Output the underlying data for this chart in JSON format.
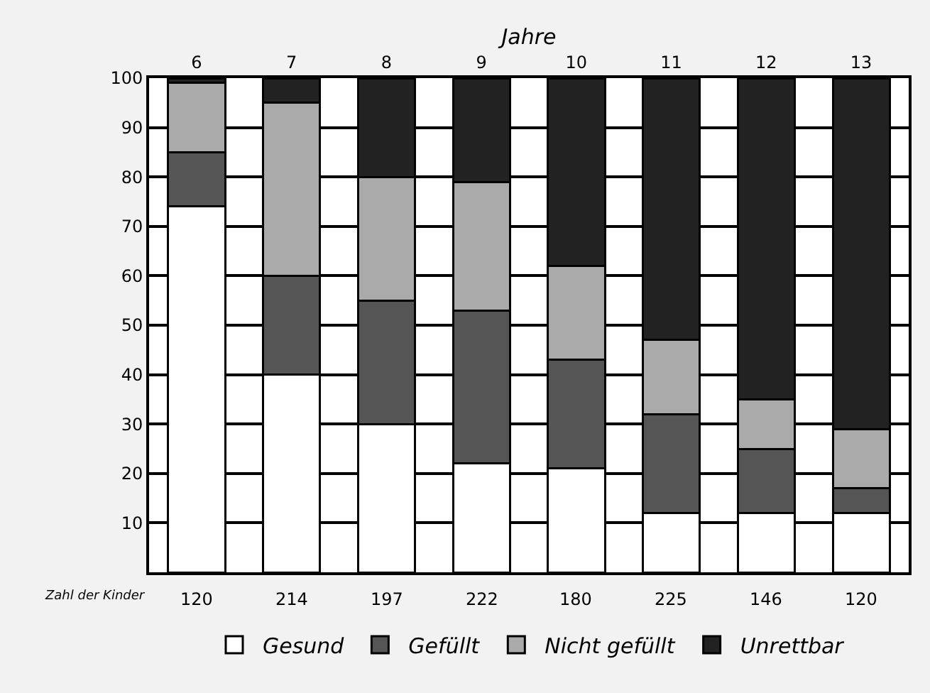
{
  "chart_data": {
    "type": "bar",
    "stacked": true,
    "xlabel": "Jahre",
    "categories": [
      "6",
      "7",
      "8",
      "9",
      "10",
      "11",
      "12",
      "13"
    ],
    "series": [
      {
        "name": "Gesund",
        "color": "#ffffff",
        "values": [
          74,
          40,
          30,
          22,
          21,
          12,
          12,
          12
        ]
      },
      {
        "name": "Gefüllt",
        "color": "#555555",
        "values": [
          11,
          20,
          25,
          31,
          22,
          20,
          13,
          5
        ]
      },
      {
        "name": "Nicht gefüllt",
        "color": "#aaaaaa",
        "values": [
          14,
          35,
          25,
          26,
          19,
          15,
          10,
          12
        ]
      },
      {
        "name": "Unrettbar",
        "color": "#222222",
        "values": [
          1,
          5,
          20,
          21,
          38,
          53,
          65,
          71
        ]
      }
    ],
    "ylim": [
      0,
      100
    ],
    "yticks": [
      10,
      20,
      30,
      40,
      50,
      60,
      70,
      80,
      90,
      100
    ],
    "grid": "y",
    "legend": "bottom",
    "annotations": [
      "Zahl der Kinder",
      "120",
      "214",
      "197",
      "222",
      "180",
      "225",
      "146",
      "120"
    ]
  }
}
